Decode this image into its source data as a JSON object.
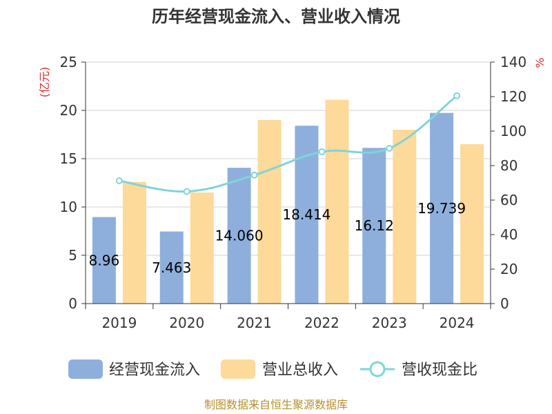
{
  "chart_data": {
    "type": "bar",
    "title": "历年经营现金流入、营业收入情况",
    "categories": [
      "2019",
      "2020",
      "2021",
      "2022",
      "2023",
      "2024"
    ],
    "series": [
      {
        "name": "经营现金流入",
        "type": "bar",
        "axis": "left",
        "color": "#8eafdc",
        "values": [
          8.96,
          7.463,
          14.06,
          18.414,
          16.12,
          19.739
        ],
        "labels": [
          "8.96",
          "7.463",
          "14.060",
          "18.414",
          "16.12",
          "19.739"
        ]
      },
      {
        "name": "营业总收入",
        "type": "bar",
        "axis": "left",
        "color": "#fdd99a",
        "values": [
          12.6,
          11.5,
          19.0,
          21.1,
          18.0,
          16.5
        ]
      },
      {
        "name": "营收现金比",
        "type": "line",
        "axis": "right",
        "color": "#7fd4d8",
        "values": [
          71.2,
          65.0,
          74.5,
          88.0,
          90.0,
          120.5
        ]
      }
    ],
    "y_left": {
      "unit": "(亿元)",
      "min": 0,
      "max": 25,
      "ticks": [
        0,
        5,
        10,
        15,
        20,
        25
      ]
    },
    "y_right": {
      "unit": "%",
      "min": 0,
      "max": 140,
      "ticks": [
        0,
        20,
        40,
        60,
        80,
        100,
        120,
        140
      ]
    },
    "grid": true,
    "legend_position": "bottom",
    "source": "制图数据来自恒生聚源数据库"
  }
}
